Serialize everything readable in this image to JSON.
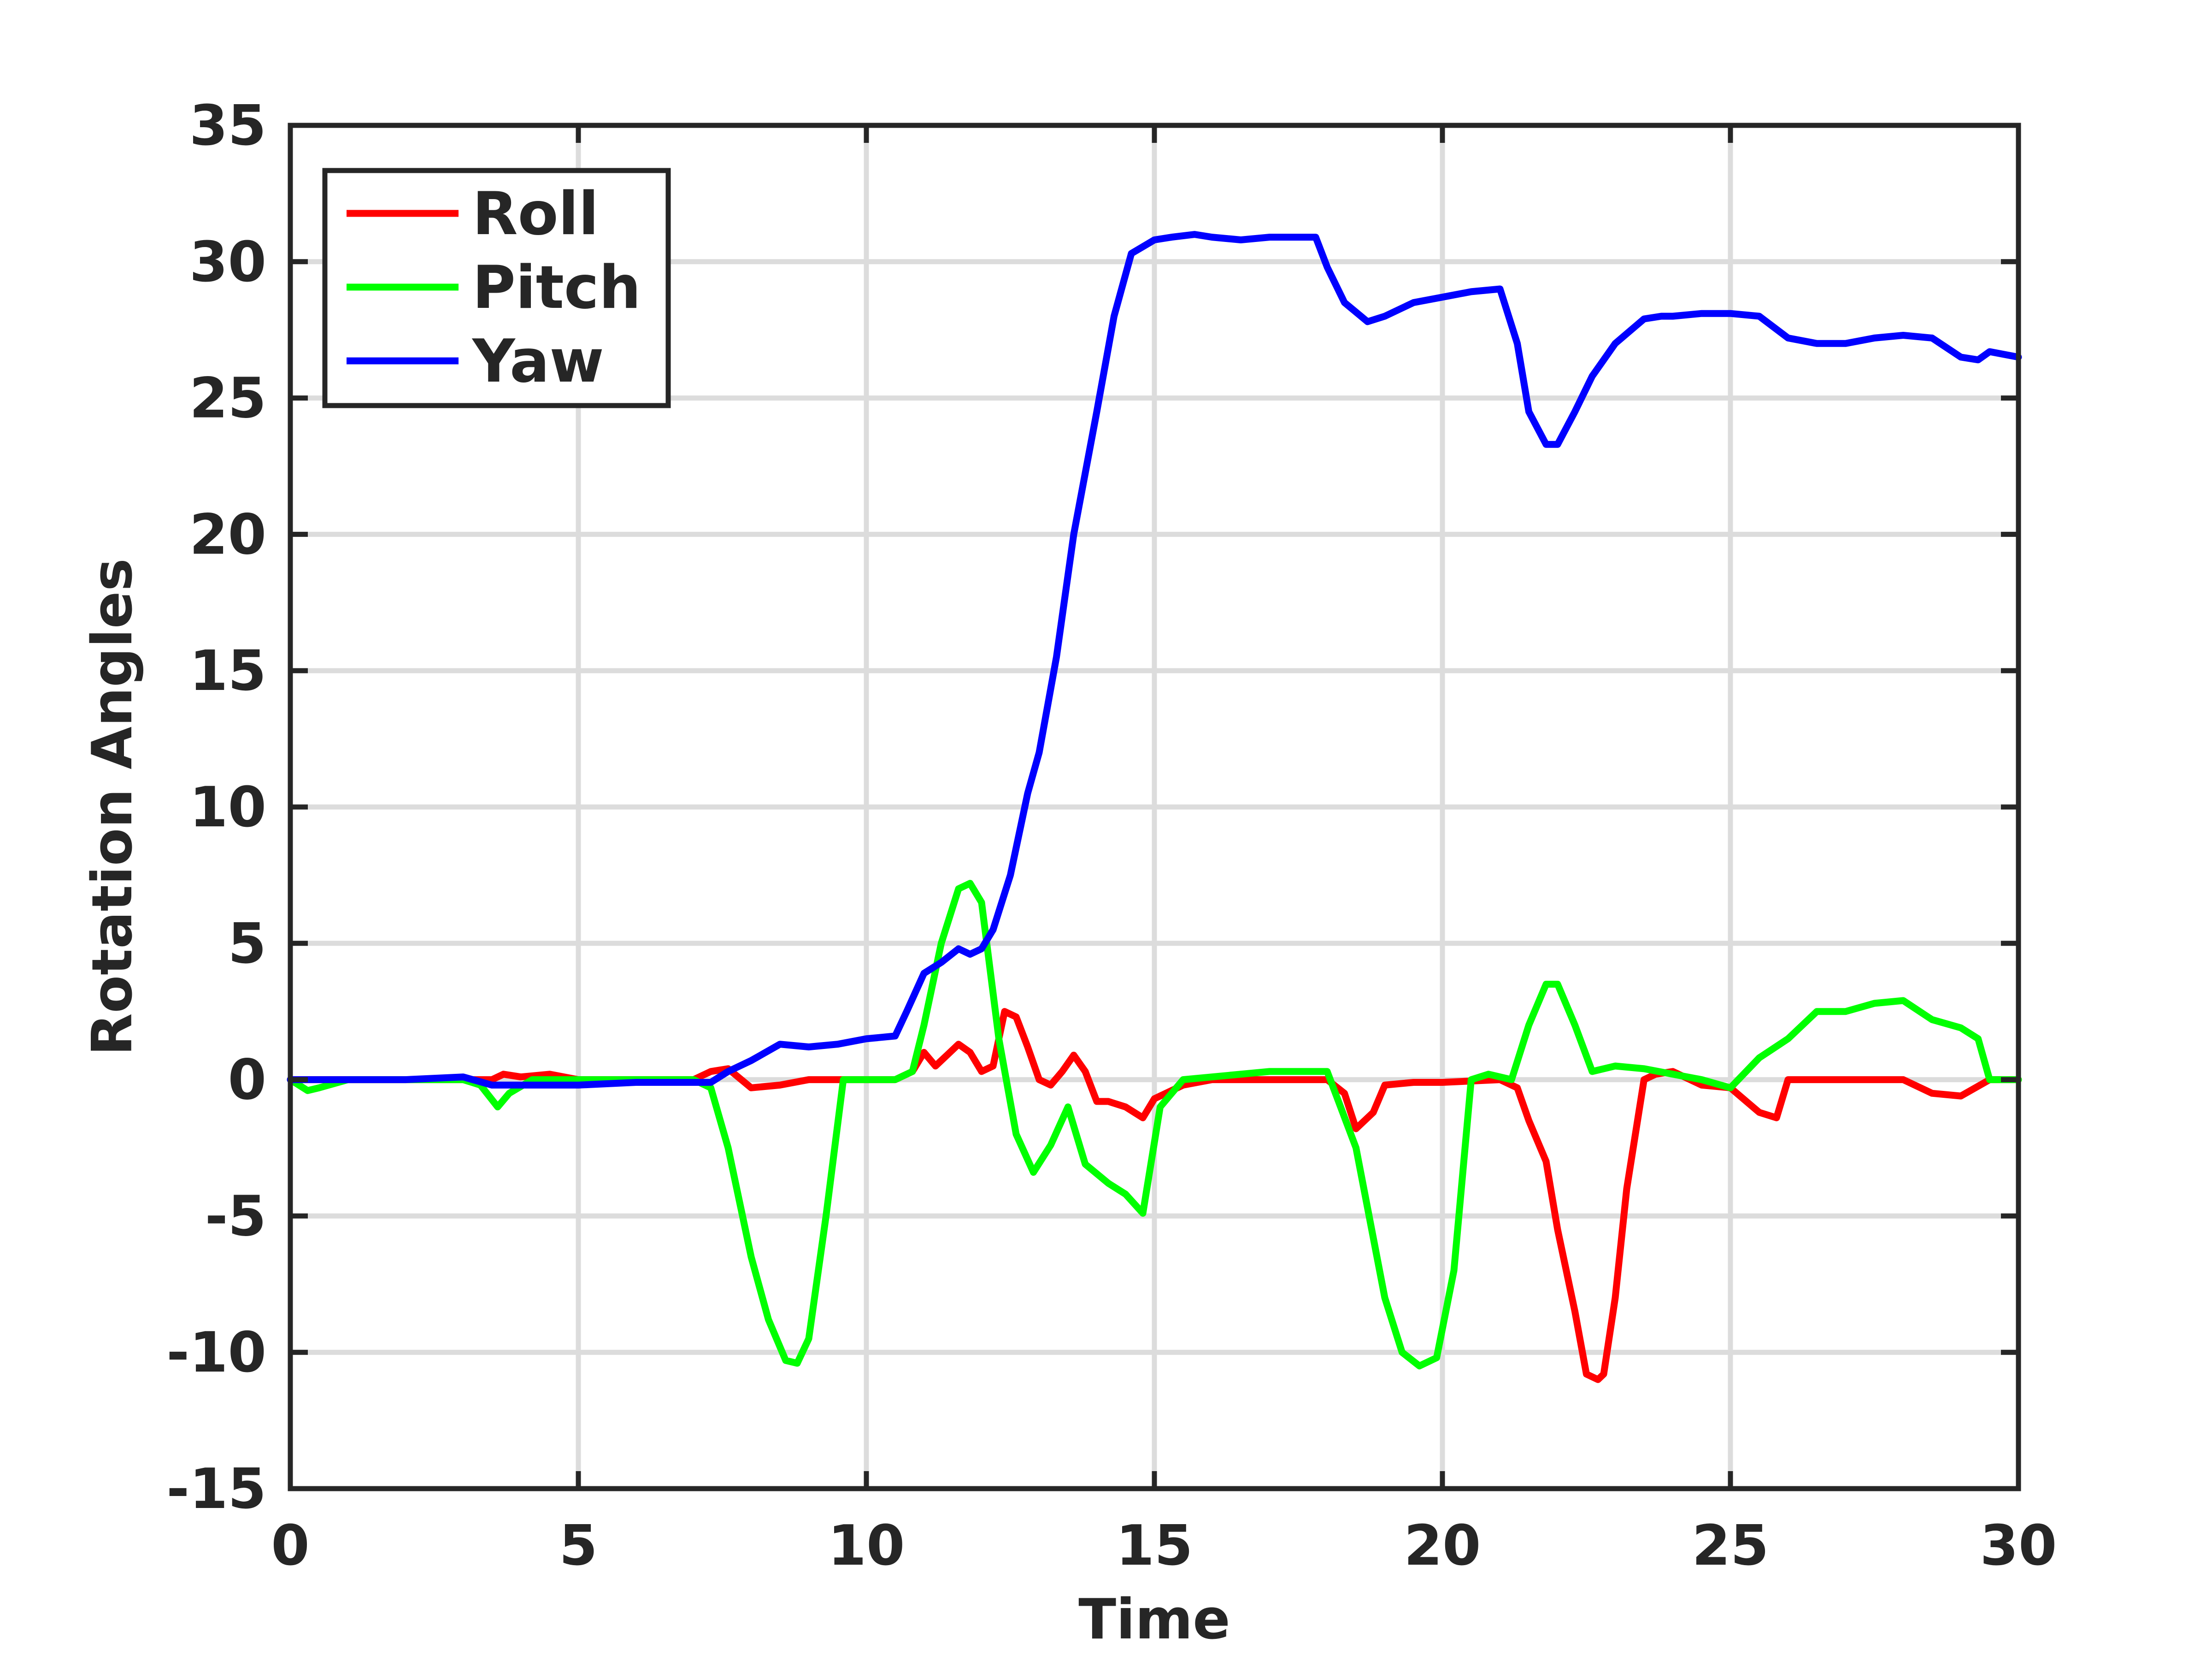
{
  "chart_data": {
    "type": "line",
    "xlabel": "Time",
    "ylabel": "Rotation Angles",
    "xlim": [
      0,
      30
    ],
    "ylim": [
      -15,
      35
    ],
    "xticks": [
      0,
      5,
      10,
      15,
      20,
      25,
      30
    ],
    "yticks": [
      -15,
      -10,
      -5,
      0,
      5,
      10,
      15,
      20,
      25,
      30,
      35
    ],
    "grid": true,
    "legend_position": "top-left",
    "series": [
      {
        "name": "Roll",
        "color": "#ff0000",
        "x": [
          0,
          1,
          2,
          3,
          3.5,
          3.7,
          4,
          4.5,
          5,
          6,
          7,
          7.3,
          7.6,
          8,
          8.5,
          9,
          9.5,
          10,
          10.5,
          10.8,
          11,
          11.2,
          11.4,
          11.6,
          11.8,
          12,
          12.2,
          12.4,
          12.6,
          12.8,
          13,
          13.2,
          13.4,
          13.6,
          13.8,
          14,
          14.2,
          14.5,
          14.8,
          15,
          15.5,
          16,
          17,
          18,
          18.3,
          18.5,
          18.8,
          19,
          19.5,
          20,
          21,
          21.3,
          21.5,
          21.8,
          22,
          22.3,
          22.5,
          22.7,
          22.8,
          23,
          23.2,
          23.5,
          23.7,
          24,
          24.5,
          25,
          25.5,
          25.8,
          26,
          26.5,
          27,
          28,
          28.5,
          29,
          29.5,
          30
        ],
        "y": [
          0,
          0,
          0,
          0,
          0,
          0.2,
          0.1,
          0.2,
          0,
          0,
          0,
          0.3,
          0.4,
          -0.3,
          -0.2,
          0,
          0,
          0,
          0,
          0.3,
          1,
          0.5,
          0.9,
          1.3,
          1,
          0.3,
          0.5,
          2.5,
          2.3,
          1.2,
          0,
          -0.2,
          0.3,
          0.9,
          0.3,
          -0.8,
          -0.8,
          -1,
          -1.4,
          -0.7,
          -0.2,
          0,
          0,
          0,
          -0.5,
          -1.8,
          -1.2,
          -0.2,
          -0.1,
          -0.1,
          0,
          -0.3,
          -1.5,
          -3,
          -5.5,
          -8.5,
          -10.8,
          -11,
          -10.8,
          -8,
          -4,
          0,
          0.2,
          0.3,
          -0.2,
          -0.3,
          -1.2,
          -1.4,
          0,
          0,
          0,
          0,
          -0.5,
          -0.6,
          0,
          0
        ]
      },
      {
        "name": "Pitch",
        "color": "#00ff00",
        "x": [
          0,
          0.3,
          0.5,
          1,
          2,
          3,
          3.3,
          3.6,
          3.8,
          4.2,
          5,
          6,
          7,
          7.3,
          7.6,
          8,
          8.3,
          8.6,
          8.8,
          9,
          9.3,
          9.6,
          10,
          10.5,
          10.8,
          11,
          11.3,
          11.6,
          11.8,
          12,
          12.3,
          12.6,
          12.9,
          13.2,
          13.5,
          13.8,
          14.2,
          14.5,
          14.8,
          15.1,
          15.5,
          16,
          17,
          18,
          18.5,
          19,
          19.3,
          19.6,
          19.9,
          20.2,
          20.5,
          20.8,
          21.2,
          21.5,
          21.8,
          22,
          22.3,
          22.6,
          23,
          23.5,
          24,
          24.5,
          25,
          25.5,
          26,
          26.5,
          27,
          27.5,
          28,
          28.5,
          29,
          29.3,
          29.5,
          30
        ],
        "y": [
          0,
          -0.4,
          -0.3,
          0,
          0,
          0,
          -0.2,
          -1,
          -0.5,
          0,
          0,
          0,
          0,
          -0.3,
          -2.5,
          -6.5,
          -8.8,
          -10.3,
          -10.4,
          -9.5,
          -5,
          0,
          0,
          0,
          0.3,
          2,
          5,
          7,
          7.2,
          6.5,
          1.5,
          -2,
          -3.4,
          -2.4,
          -1,
          -3.1,
          -3.8,
          -4.2,
          -4.9,
          -1,
          0,
          0.1,
          0.3,
          0.3,
          -2.5,
          -8,
          -10,
          -10.5,
          -10.2,
          -7,
          0,
          0.2,
          0,
          2,
          3.5,
          3.5,
          2,
          0.3,
          0.5,
          0.4,
          0.2,
          0,
          -0.3,
          0.8,
          1.5,
          2.5,
          2.5,
          2.8,
          2.9,
          2.2,
          1.9,
          1.5,
          0,
          0
        ]
      },
      {
        "name": "Yaw",
        "color": "#0000ff",
        "x": [
          0,
          1,
          2,
          3,
          3.5,
          3.8,
          5,
          6,
          7,
          7.3,
          7.6,
          8,
          8.5,
          9,
          9.5,
          10,
          10.5,
          10.7,
          11,
          11.3,
          11.6,
          11.8,
          12,
          12.2,
          12.5,
          12.8,
          13,
          13.3,
          13.6,
          14,
          14.3,
          14.6,
          15,
          15.3,
          15.7,
          16,
          16.5,
          17,
          17.8,
          18,
          18.3,
          18.7,
          19,
          19.5,
          20,
          20.5,
          21,
          21.3,
          21.5,
          21.8,
          22,
          22.3,
          22.6,
          23,
          23.5,
          23.8,
          24,
          24.5,
          25,
          25.5,
          26,
          26.5,
          27,
          27.5,
          28,
          28.5,
          29,
          29.3,
          29.5,
          30
        ],
        "y": [
          0,
          0,
          0,
          0.1,
          -0.2,
          -0.2,
          -0.2,
          -0.1,
          -0.1,
          -0.1,
          0.3,
          0.7,
          1.3,
          1.2,
          1.3,
          1.5,
          1.6,
          2.5,
          3.9,
          4.3,
          4.8,
          4.6,
          4.8,
          5.5,
          7.5,
          10.5,
          12,
          15.5,
          20,
          24.5,
          28,
          30.3,
          30.8,
          30.9,
          31,
          30.9,
          30.8,
          30.9,
          30.9,
          29.8,
          28.5,
          27.8,
          28,
          28.5,
          28.7,
          28.9,
          29,
          27,
          24.5,
          23.3,
          23.3,
          24.5,
          25.8,
          27,
          27.9,
          28,
          28,
          28.1,
          28.1,
          28,
          27.2,
          27,
          27,
          27.2,
          27.3,
          27.2,
          26.5,
          26.4,
          26.7,
          26.5
        ]
      }
    ]
  }
}
